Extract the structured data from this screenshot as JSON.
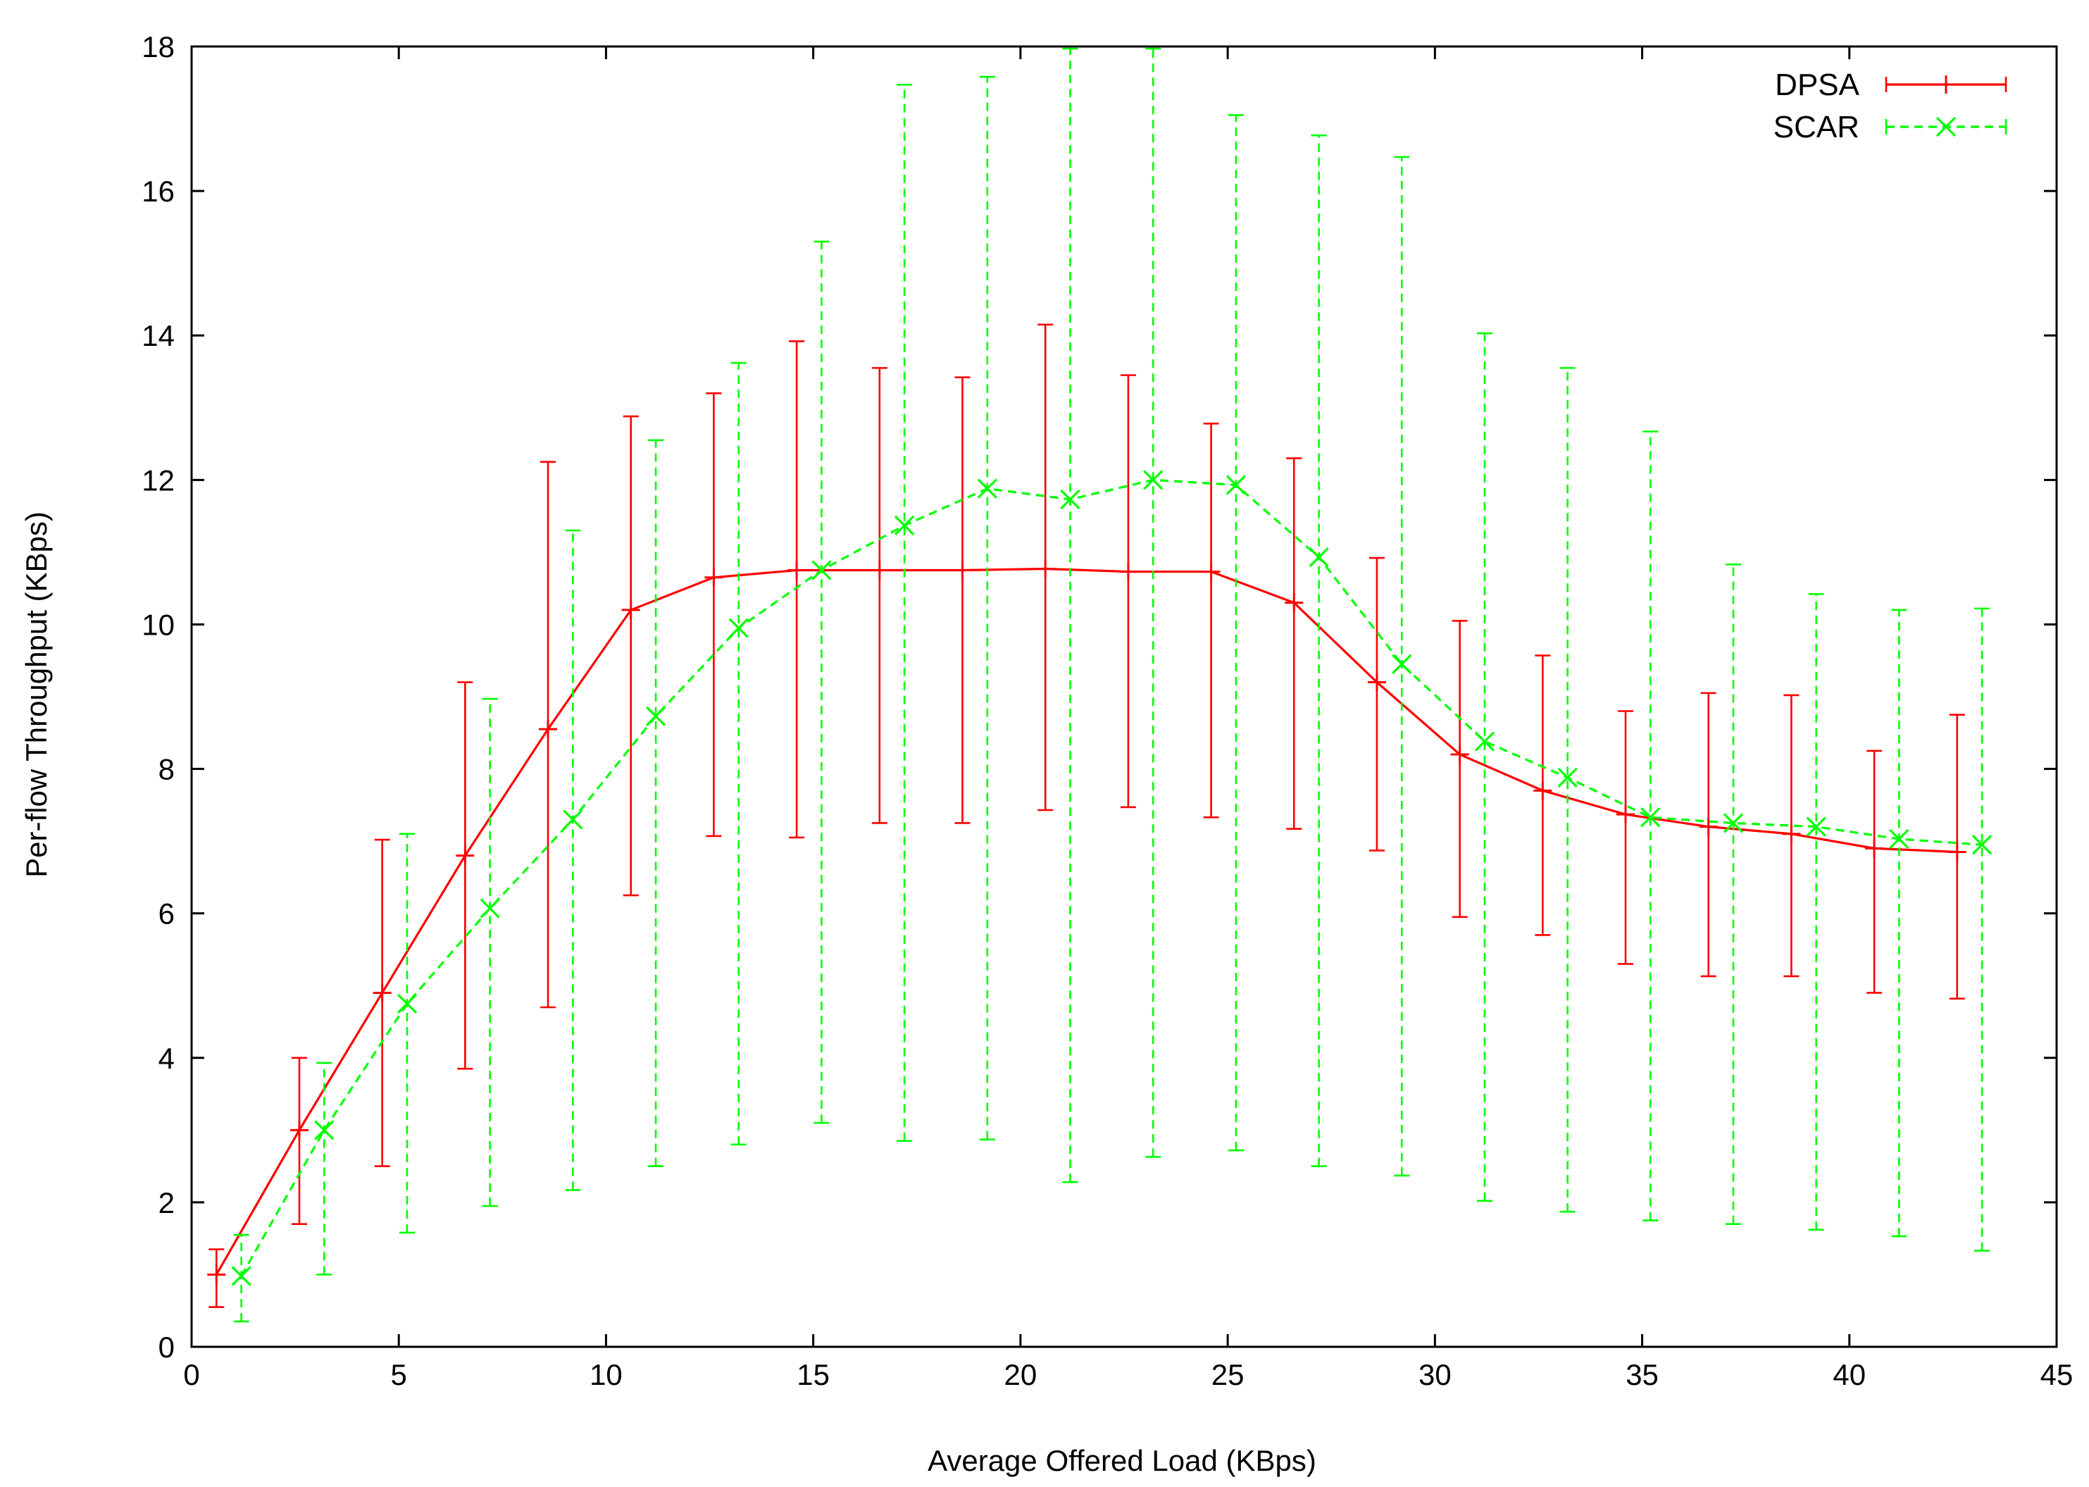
{
  "chart_data": {
    "type": "line",
    "title": "",
    "xlabel": "Average Offered Load (KBps)",
    "ylabel": "Per-flow Throughput (KBps)",
    "xlim": [
      0,
      45
    ],
    "ylim": [
      0,
      18
    ],
    "xticks": [
      0,
      5,
      10,
      15,
      20,
      25,
      30,
      35,
      40,
      45
    ],
    "yticks": [
      0,
      2,
      4,
      6,
      8,
      10,
      12,
      14,
      16,
      18
    ],
    "grid": false,
    "legend_position": "top-right",
    "error_bars": true,
    "series": [
      {
        "name": "DPSA",
        "color": "#ff0000",
        "line_style": "solid",
        "marker": "plus",
        "x": [
          0.6,
          2.6,
          4.6,
          6.6,
          8.6,
          10.6,
          12.6,
          14.6,
          16.6,
          18.6,
          20.6,
          22.6,
          24.6,
          26.6,
          28.6,
          30.6,
          32.6,
          34.6,
          36.6,
          38.6,
          40.6,
          42.6
        ],
        "y": [
          1.0,
          3.0,
          4.9,
          6.8,
          8.55,
          10.2,
          10.65,
          10.75,
          10.75,
          10.75,
          10.77,
          10.73,
          10.73,
          10.3,
          9.2,
          8.2,
          7.7,
          7.37,
          7.2,
          7.1,
          6.9,
          6.85
        ],
        "y_low": [
          0.55,
          1.7,
          2.5,
          3.85,
          4.7,
          6.25,
          7.07,
          7.05,
          7.25,
          7.25,
          7.43,
          7.47,
          7.33,
          7.17,
          6.87,
          5.95,
          5.7,
          5.3,
          5.13,
          5.13,
          4.9,
          4.82
        ],
        "y_high": [
          1.35,
          4.0,
          7.02,
          9.2,
          12.25,
          12.88,
          13.2,
          13.92,
          13.55,
          13.42,
          14.15,
          13.45,
          12.78,
          12.3,
          10.92,
          10.05,
          9.57,
          8.8,
          9.05,
          9.02,
          8.25,
          8.75
        ]
      },
      {
        "name": "SCAR",
        "color": "#00ff00",
        "line_style": "dashed",
        "marker": "cross",
        "x": [
          1.2,
          3.2,
          5.2,
          7.2,
          9.2,
          11.2,
          13.2,
          15.2,
          17.2,
          19.2,
          21.2,
          23.2,
          25.2,
          27.2,
          29.2,
          31.2,
          33.2,
          35.2,
          37.2,
          39.2,
          41.2,
          43.2
        ],
        "y": [
          0.98,
          3.0,
          4.75,
          6.07,
          7.3,
          8.73,
          9.95,
          10.75,
          11.37,
          11.88,
          11.73,
          12.0,
          11.93,
          10.93,
          9.45,
          8.38,
          7.88,
          7.33,
          7.25,
          7.2,
          7.03,
          6.95
        ],
        "y_low": [
          0.35,
          1.0,
          1.58,
          1.95,
          2.17,
          2.5,
          2.8,
          3.1,
          2.85,
          2.87,
          2.28,
          2.63,
          2.72,
          2.5,
          2.37,
          2.02,
          1.87,
          1.75,
          1.7,
          1.62,
          1.53,
          1.33
        ],
        "y_high": [
          1.55,
          3.93,
          7.1,
          8.97,
          11.3,
          12.55,
          13.62,
          15.3,
          17.47,
          17.58,
          17.97,
          17.97,
          17.05,
          16.77,
          16.47,
          14.03,
          13.55,
          12.67,
          10.83,
          10.42,
          10.2,
          10.22
        ]
      }
    ]
  }
}
